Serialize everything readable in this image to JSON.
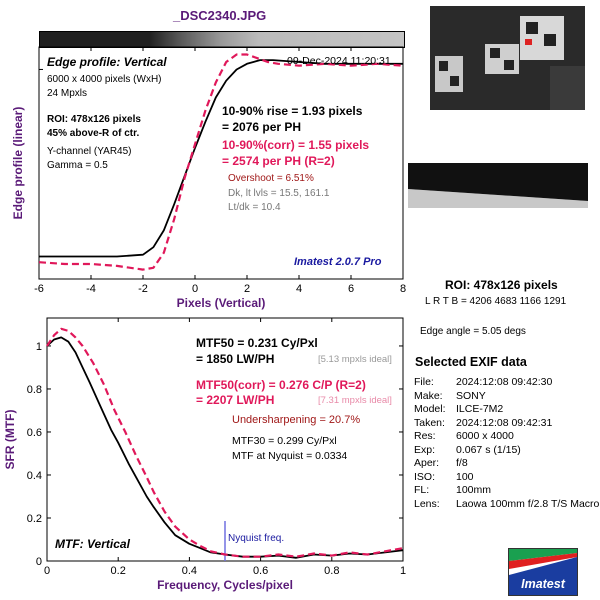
{
  "file_title": "_DSC2340.JPG",
  "colors": {
    "measured": "#000000",
    "corrected": "#e0185a",
    "title": "#5a1a78",
    "axis_label": "#5a1a78",
    "nyquist": "#7070e0"
  },
  "edge_panel": {
    "panel_label": "Edge profile: Vertical",
    "date": "09-Dec-2024 11:20:31",
    "size": "6000 x 4000 pixels (WxH)",
    "mpx": "24 Mpxls",
    "roi": "ROI: 478x126 pixels",
    "roi_pos": "45% above-R of ctr.",
    "channel": "Y-channel  (YAR45)",
    "gamma": "Gamma = 0.5",
    "rise_1": "10-90% rise = 1.93 pixels",
    "rise_2": "= 2076 per PH",
    "corr_1": "10-90%(corr) = 1.55 pixels",
    "corr_2": "= 2574 per PH  (R=2)",
    "overshoot": "Overshoot = 6.51%",
    "levels": "Dk, lt lvls = 15.5, 161.1",
    "ltdk": "Lt/dk = 10.4",
    "brand": "Imatest 2.0.7 Pro"
  },
  "mtf_panel": {
    "panel_label": "MTF: Vertical",
    "mtf50_1": "MTF50 = 0.231 Cy/Pxl",
    "mtf50_2": "= 1850 LW/PH",
    "mtf50_ideal": "[5.13 mpxls ideal]",
    "mtf50c_1": "MTF50(corr) = 0.276 C/P  (R=2)",
    "mtf50c_2": "= 2207 LW/PH",
    "mtf50c_ideal": "[7.31 mpxls ideal]",
    "undersharp": "Undersharpening = 20.7%",
    "mtf30": "MTF30 = 0.299 Cy/Pxl",
    "nyq": "MTF at Nyquist = 0.0334",
    "nyquist_label": "Nyquist freq."
  },
  "side": {
    "roi": "ROI: 478x126 pixels",
    "lrtb": "L R  T B = 4206 4683  1166 1291",
    "edge_angle": "Edge angle = 5.05 degs",
    "exif_title": "Selected EXIF data",
    "exif": [
      {
        "k": "File:",
        "v": "2024:12:08 09:42:30"
      },
      {
        "k": "Make:",
        "v": "SONY"
      },
      {
        "k": "Model:",
        "v": "ILCE-7M2"
      },
      {
        "k": "Taken:",
        "v": "2024:12:08 09:42:31"
      },
      {
        "k": "Res:",
        "v": "6000 x 4000"
      },
      {
        "k": "Exp:",
        "v": "0.067 s  (1/15)"
      },
      {
        "k": "Aper:",
        "v": "f/8"
      },
      {
        "k": "ISO:",
        "v": "100"
      },
      {
        "k": "FL:",
        "v": "100mm"
      },
      {
        "k": "Lens:",
        "v": "Laowa 100mm f/2.8 T/S Macro"
      }
    ],
    "logo_text": "Imatest"
  },
  "chart_data": [
    {
      "type": "line",
      "xlabel": "Pixels (Vertical)",
      "ylabel": "Edge profile (linear)",
      "xlim": [
        -6,
        8
      ],
      "ylim": [
        -0.12,
        1.12
      ],
      "xticks": [
        -6,
        -4,
        -2,
        0,
        2,
        4,
        6,
        8
      ],
      "grid": false,
      "series": [
        {
          "x": [
            -6,
            -4,
            -3,
            -2,
            -1.6,
            -1.2,
            -0.8,
            -0.4,
            0,
            0.4,
            0.8,
            1.2,
            1.6,
            2,
            2.5,
            3,
            4,
            5,
            6,
            7,
            8
          ],
          "y": [
            0,
            0,
            0,
            0.01,
            0.05,
            0.14,
            0.28,
            0.43,
            0.58,
            0.72,
            0.85,
            0.94,
            1.0,
            1.03,
            1.05,
            1.05,
            1.04,
            1.03,
            1.03,
            1.03,
            1.03
          ]
        },
        {
          "x": [
            -6,
            -5,
            -4,
            -3,
            -2,
            -1.6,
            -1.2,
            -0.8,
            -0.4,
            0,
            0.4,
            0.8,
            1.2,
            1.6,
            2,
            2.4,
            2.8,
            3.2,
            4,
            5,
            6,
            7,
            8
          ],
          "y": [
            -0.03,
            -0.04,
            -0.04,
            -0.05,
            -0.07,
            -0.06,
            0.02,
            0.2,
            0.42,
            0.6,
            0.78,
            0.93,
            1.04,
            1.08,
            1.08,
            1.06,
            1.04,
            1.03,
            1.02,
            1.03,
            1.02,
            1.03,
            1.02
          ]
        }
      ]
    },
    {
      "type": "line",
      "xlabel": "Frequency, Cycles/pixel",
      "ylabel": "SFR (MTF)",
      "xlim": [
        0,
        1
      ],
      "ylim": [
        0,
        1.13
      ],
      "xticks": [
        0,
        0.2,
        0.4,
        0.6,
        0.8,
        1
      ],
      "yticks": [
        0,
        0.2,
        0.4,
        0.6,
        0.8,
        1
      ],
      "grid": false,
      "nyquist": 0.5,
      "series": [
        {
          "x": [
            0,
            0.02,
            0.04,
            0.06,
            0.08,
            0.1,
            0.12,
            0.15,
            0.18,
            0.2,
            0.23,
            0.25,
            0.28,
            0.3,
            0.33,
            0.36,
            0.4,
            0.43,
            0.46,
            0.5,
            0.55,
            0.6,
            0.65,
            0.7,
            0.75,
            0.8,
            0.85,
            0.9,
            0.95,
            1.0
          ],
          "y": [
            1.0,
            1.03,
            1.04,
            1.02,
            0.97,
            0.9,
            0.83,
            0.72,
            0.61,
            0.55,
            0.45,
            0.39,
            0.3,
            0.25,
            0.18,
            0.12,
            0.08,
            0.06,
            0.04,
            0.03,
            0.02,
            0.02,
            0.025,
            0.015,
            0.03,
            0.025,
            0.035,
            0.03,
            0.04,
            0.05
          ]
        },
        {
          "x": [
            0,
            0.02,
            0.04,
            0.06,
            0.08,
            0.1,
            0.13,
            0.16,
            0.19,
            0.22,
            0.25,
            0.28,
            0.3,
            0.33,
            0.36,
            0.4,
            0.43,
            0.46,
            0.5,
            0.55,
            0.6,
            0.65,
            0.7,
            0.75,
            0.8,
            0.85,
            0.9,
            0.95,
            1.0
          ],
          "y": [
            1.0,
            1.05,
            1.08,
            1.07,
            1.04,
            1.0,
            0.92,
            0.82,
            0.7,
            0.6,
            0.49,
            0.39,
            0.32,
            0.23,
            0.16,
            0.1,
            0.07,
            0.045,
            0.03,
            0.02,
            0.02,
            0.03,
            0.02,
            0.035,
            0.025,
            0.04,
            0.03,
            0.045,
            0.06
          ]
        }
      ]
    }
  ]
}
